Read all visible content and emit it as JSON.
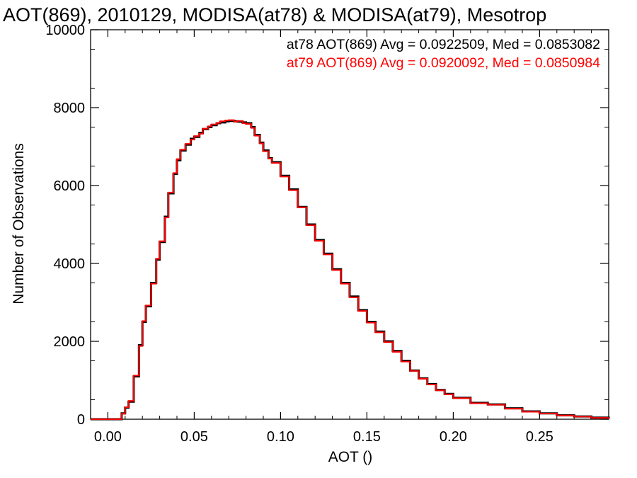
{
  "chart_data": {
    "type": "histogram-step",
    "title": "AOT(869), 2010129, MODISA(at78) & MODISA(at79), Mesotrop",
    "xlabel": "AOT ()",
    "ylabel": "Number of Observations",
    "xlim": [
      -0.01,
      0.29
    ],
    "ylim": [
      0,
      10000
    ],
    "x_ticks": [
      0.0,
      0.05,
      0.1,
      0.15,
      0.2,
      0.25
    ],
    "x_tick_labels": [
      "0.00",
      "0.05",
      "0.10",
      "0.15",
      "0.20",
      "0.25"
    ],
    "y_ticks": [
      0,
      2000,
      4000,
      6000,
      8000,
      10000
    ],
    "y_tick_labels": [
      "0",
      "2000",
      "4000",
      "6000",
      "8000",
      "10000"
    ],
    "grid": false,
    "annotations": [
      {
        "text": "at78 AOT(869) Avg = 0.0922509, Med = 0.0853082",
        "color": "#000000"
      },
      {
        "text": "at79 AOT(869) Avg = 0.0920092, Med = 0.0850984",
        "color": "#ff0000"
      }
    ],
    "series": [
      {
        "color": "#000000",
        "x": [
          -0.01,
          0.0,
          0.005,
          0.008,
          0.01,
          0.012,
          0.015,
          0.018,
          0.02,
          0.022,
          0.025,
          0.028,
          0.03,
          0.033,
          0.035,
          0.038,
          0.04,
          0.042,
          0.045,
          0.048,
          0.05,
          0.053,
          0.055,
          0.058,
          0.06,
          0.063,
          0.065,
          0.068,
          0.07,
          0.073,
          0.075,
          0.078,
          0.08,
          0.083,
          0.085,
          0.088,
          0.09,
          0.093,
          0.095,
          0.1,
          0.105,
          0.11,
          0.115,
          0.12,
          0.125,
          0.13,
          0.135,
          0.14,
          0.145,
          0.15,
          0.155,
          0.16,
          0.165,
          0.17,
          0.175,
          0.18,
          0.185,
          0.19,
          0.195,
          0.2,
          0.21,
          0.22,
          0.23,
          0.24,
          0.25,
          0.26,
          0.27,
          0.28,
          0.29
        ],
        "y": [
          0,
          0,
          0,
          150,
          300,
          450,
          1100,
          1900,
          2500,
          2900,
          3500,
          4100,
          4550,
          5200,
          5800,
          6300,
          6650,
          6900,
          7050,
          7200,
          7250,
          7350,
          7450,
          7500,
          7550,
          7600,
          7620,
          7650,
          7660,
          7650,
          7640,
          7620,
          7600,
          7500,
          7300,
          7100,
          6900,
          6700,
          6600,
          6250,
          5900,
          5450,
          5000,
          4600,
          4250,
          3850,
          3500,
          3150,
          2800,
          2500,
          2250,
          2000,
          1750,
          1500,
          1250,
          1050,
          900,
          750,
          650,
          550,
          420,
          380,
          280,
          200,
          150,
          100,
          70,
          40,
          10
        ]
      },
      {
        "color": "#ff0000",
        "x": [
          -0.01,
          0.0,
          0.005,
          0.008,
          0.01,
          0.012,
          0.015,
          0.018,
          0.02,
          0.022,
          0.025,
          0.028,
          0.03,
          0.033,
          0.035,
          0.038,
          0.04,
          0.042,
          0.045,
          0.048,
          0.05,
          0.053,
          0.055,
          0.058,
          0.06,
          0.063,
          0.065,
          0.068,
          0.07,
          0.073,
          0.075,
          0.078,
          0.08,
          0.083,
          0.085,
          0.088,
          0.09,
          0.093,
          0.095,
          0.1,
          0.105,
          0.11,
          0.115,
          0.12,
          0.125,
          0.13,
          0.135,
          0.14,
          0.145,
          0.15,
          0.155,
          0.16,
          0.165,
          0.17,
          0.175,
          0.18,
          0.185,
          0.19,
          0.195,
          0.2,
          0.21,
          0.22,
          0.23,
          0.24,
          0.25,
          0.26,
          0.27,
          0.28,
          0.29
        ],
        "y": [
          0,
          0,
          0,
          140,
          310,
          470,
          1120,
          1880,
          2520,
          2920,
          3480,
          4120,
          4570,
          5180,
          5820,
          6320,
          6680,
          6920,
          7070,
          7180,
          7270,
          7330,
          7460,
          7520,
          7570,
          7610,
          7650,
          7670,
          7680,
          7640,
          7660,
          7600,
          7580,
          7480,
          7280,
          7080,
          6880,
          6690,
          6580,
          6230,
          5880,
          5440,
          4980,
          4580,
          4230,
          3830,
          3480,
          3130,
          2780,
          2480,
          2230,
          1980,
          1730,
          1480,
          1240,
          1040,
          890,
          740,
          640,
          540,
          410,
          370,
          270,
          190,
          145,
          95,
          65,
          35,
          8
        ]
      }
    ]
  }
}
